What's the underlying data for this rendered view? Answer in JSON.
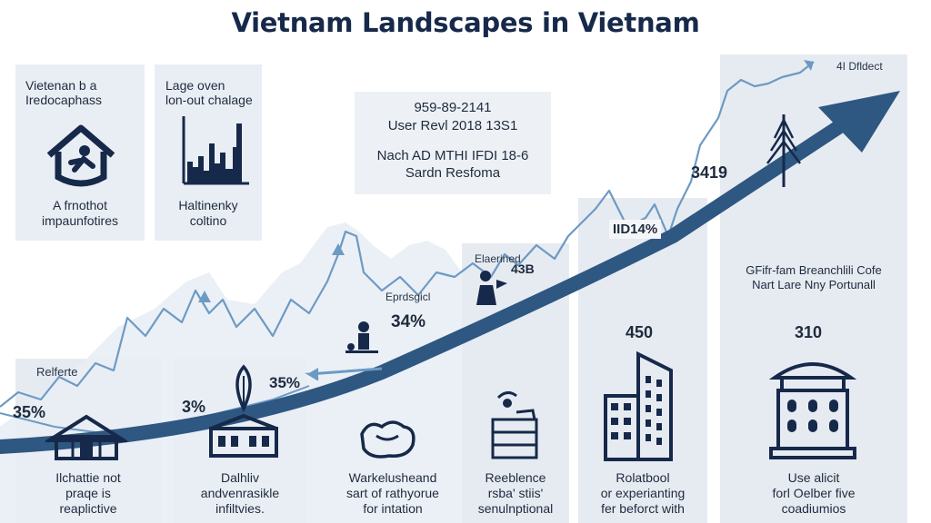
{
  "title": "Vietnam  Landscapes in Vietnam",
  "top_cards": [
    {
      "heading": [
        "Vietenan b a",
        "Iredocaphass"
      ],
      "caption": [
        "A frnothot",
        "impaunfotires"
      ],
      "icon": "house-with-person-icon"
    },
    {
      "heading": [
        "Lage oven",
        "lon-out chalage"
      ],
      "caption": [
        "Haltinenky",
        "coltino"
      ],
      "icon": "city-bar-chart-icon"
    }
  ],
  "info_box": {
    "lines": [
      "959-89-2141",
      "User Revl 2018 13S1",
      "",
      "Nach AD MTHI IFDI 18-6",
      "Sardn Resfoma"
    ]
  },
  "top_right_label": "4I Dfldect",
  "mid_labels": {
    "val_3419": "3419",
    "val_d14": "IID14%",
    "label_eprsgid": "Eprdsgicl",
    "val_34": "34%",
    "label_elaerined": "Elaerined",
    "val_43b": "43B",
    "label_gfit": [
      "GFifr-fam Breanchlili Cofe",
      "Nart Lare Nny Portunall"
    ]
  },
  "bottom_cards": [
    {
      "label": "Relferte",
      "value": "35%",
      "caption": [
        "Ilchattie not",
        "praqe is",
        "reaplictive"
      ],
      "icon": "temple-gate-icon"
    },
    {
      "label": "",
      "value": "3%",
      "caption": [
        "Dalhliv",
        "andvenrasikle",
        "infiltvies."
      ],
      "icon": "leaf-factory-icon",
      "side_value": "35%"
    },
    {
      "label": "",
      "value": "",
      "caption": [
        "Warkelusheand",
        "sart of rathyorue",
        "for intation"
      ],
      "icon": "hands-icon"
    },
    {
      "label": "",
      "value": "",
      "caption": [
        "Reeblence",
        "rsba' stiis'",
        "senulnptional"
      ],
      "icon": "crate-stack-icon"
    },
    {
      "label": "",
      "value": "450",
      "caption": [
        "Rolatbool",
        "or experianting",
        "fer beforct with"
      ],
      "icon": "tower-buildings-icon"
    },
    {
      "label": "",
      "value": "310",
      "caption": [
        "Use alicit",
        "forl Oelber five",
        "coadiumios"
      ],
      "icon": "pagoda-building-icon"
    }
  ],
  "colors": {
    "title": "#17294a",
    "card": "#e9eef5",
    "arrow": "#2e5782",
    "trend_line": "#6d9ac4",
    "text": "#1f2a3d"
  }
}
